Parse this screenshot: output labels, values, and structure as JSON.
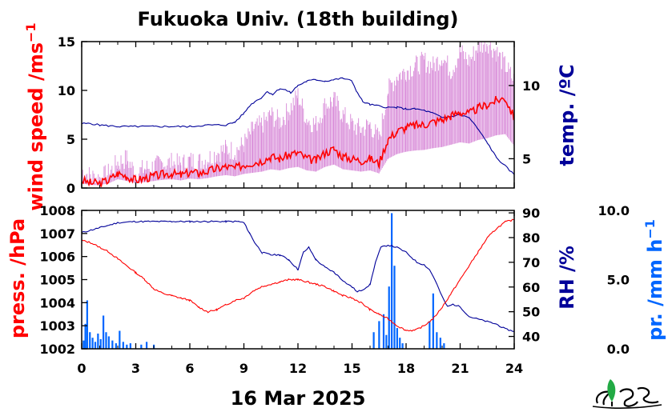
{
  "chart_data": [
    {
      "type": "line",
      "title": "Fukuoka Univ. (18th building)",
      "x_range": [
        0,
        24
      ],
      "x_ticks": [
        0,
        3,
        6,
        9,
        12,
        15,
        18,
        21,
        24
      ],
      "left_axis": {
        "label": "wind speed /ms",
        "superscript": "−1",
        "ylim": [
          0,
          15
        ],
        "ticks": [
          0,
          5,
          10,
          15
        ],
        "color": "#ff0000"
      },
      "right_axis": {
        "label": "temp. /ºC",
        "ylim": [
          3,
          13
        ],
        "ticks": [
          5,
          10
        ],
        "color": "#000099"
      },
      "series": [
        {
          "axis": "left",
          "style": "gust",
          "color": "#cc66cc",
          "x": [
            0,
            0.5,
            1,
            1.5,
            2,
            2.5,
            3,
            3.5,
            4,
            4.5,
            5,
            5.5,
            6,
            6.5,
            7,
            7.5,
            8,
            8.5,
            9,
            9.5,
            10,
            10.5,
            11,
            11.5,
            12,
            12.5,
            13,
            13.5,
            14,
            14.5,
            15,
            15.5,
            16,
            16.5,
            17,
            17.5,
            18,
            18.5,
            19,
            19.5,
            20,
            20.5,
            21,
            21.5,
            22,
            22.5,
            23,
            23.5,
            24
          ],
          "values": [
            1.8,
            1.2,
            1.0,
            1.5,
            2.6,
            3.0,
            1.5,
            2.0,
            2.2,
            2.5,
            2.6,
            2.4,
            2.8,
            2.7,
            3.0,
            3.6,
            4.0,
            3.8,
            4.5,
            6.0,
            6.5,
            7.5,
            6.8,
            8.0,
            9.5,
            7.0,
            6.5,
            8.5,
            9.0,
            7.5,
            6.5,
            6.0,
            6.5,
            5.0,
            10.0,
            11.5,
            12.0,
            12.5,
            13.0,
            12.5,
            13.5,
            12.0,
            14.0,
            13.0,
            14.5,
            15.0,
            14.0,
            12.5,
            11.0
          ]
        },
        {
          "axis": "left",
          "style": "mean",
          "color": "#ff0000",
          "x": [
            0,
            0.5,
            1,
            1.5,
            2,
            2.5,
            3,
            3.5,
            4,
            4.5,
            5,
            5.5,
            6,
            6.5,
            7,
            7.5,
            8,
            8.5,
            9,
            9.5,
            10,
            10.5,
            11,
            11.5,
            12,
            12.5,
            13,
            13.5,
            14,
            14.5,
            15,
            15.5,
            16,
            16.5,
            17,
            17.5,
            18,
            18.5,
            19,
            19.5,
            20,
            20.5,
            21,
            21.5,
            22,
            22.5,
            23,
            23.5,
            24
          ],
          "values": [
            0.8,
            0.5,
            0.5,
            0.8,
            1.5,
            1.2,
            0.8,
            1.0,
            1.2,
            1.4,
            1.5,
            1.3,
            1.6,
            1.5,
            1.7,
            2.0,
            2.2,
            2.0,
            2.4,
            2.6,
            2.8,
            3.2,
            3.0,
            3.4,
            3.6,
            3.0,
            2.8,
            3.6,
            4.0,
            3.2,
            3.0,
            2.8,
            3.0,
            2.5,
            5.0,
            5.8,
            6.2,
            6.4,
            6.5,
            6.8,
            7.0,
            7.4,
            7.8,
            7.6,
            8.2,
            8.5,
            9.0,
            9.2,
            7.2
          ]
        },
        {
          "axis": "right",
          "style": "temp",
          "color": "#000099",
          "x": [
            0,
            0.5,
            1,
            2,
            3,
            4,
            5,
            6,
            7,
            8,
            8.5,
            9,
            9.3,
            9.6,
            10,
            10.3,
            10.6,
            11,
            11.3,
            11.6,
            12,
            12.5,
            13,
            13.5,
            14,
            14.5,
            15,
            15.3,
            15.6,
            16,
            16.5,
            17,
            17.5,
            18,
            18.5,
            19,
            19.5,
            20,
            20.5,
            21,
            21.5,
            22,
            22.5,
            23,
            23.5,
            24
          ],
          "values": [
            7.4,
            7.4,
            7.3,
            7.2,
            7.2,
            7.2,
            7.2,
            7.2,
            7.3,
            7.3,
            7.5,
            8.1,
            8.6,
            8.9,
            9.2,
            9.6,
            9.4,
            9.8,
            9.7,
            9.5,
            10.0,
            10.3,
            10.4,
            10.3,
            10.4,
            10.5,
            10.3,
            9.5,
            8.9,
            8.7,
            8.6,
            8.5,
            8.5,
            8.4,
            8.4,
            8.3,
            8.1,
            7.8,
            7.9,
            8.0,
            7.8,
            7.0,
            6.1,
            5.1,
            4.5,
            3.9
          ]
        }
      ]
    },
    {
      "type": "line",
      "x_range": [
        0,
        24
      ],
      "x_ticks": [
        0,
        3,
        6,
        9,
        12,
        15,
        18,
        21,
        24
      ],
      "xlabel": "16 Mar 2025",
      "left_axis": {
        "label": "press. /hPa",
        "ylim": [
          1002,
          1008
        ],
        "ticks": [
          1002,
          1003,
          1004,
          1005,
          1006,
          1007,
          1008
        ],
        "color": "#ff0000"
      },
      "right_axis": {
        "label": "RH /%",
        "ylim": [
          35,
          91
        ],
        "ticks": [
          40,
          50,
          60,
          70,
          80,
          90
        ],
        "color": "#000099"
      },
      "precip_axis": {
        "label": "pr. /mm h",
        "superscript": "−1",
        "ylim": [
          0,
          10
        ],
        "ticks": [
          "0.0",
          "5.0",
          "10.0"
        ],
        "color": "#0066ff"
      },
      "series": [
        {
          "axis": "left",
          "style": "press",
          "color": "#ff0000",
          "x": [
            0,
            0.5,
            1,
            1.5,
            2,
            2.5,
            3,
            3.5,
            4,
            4.5,
            5,
            5.5,
            6,
            6.5,
            7,
            7.5,
            8,
            8.5,
            9,
            9.5,
            10,
            10.5,
            11,
            11.5,
            12,
            12.5,
            13,
            13.5,
            14,
            14.5,
            15,
            15.5,
            16,
            16.5,
            17,
            17.5,
            18,
            18.5,
            19,
            19.5,
            20,
            20.5,
            21,
            21.5,
            22,
            22.5,
            23,
            23.5,
            24
          ],
          "values": [
            1006.7,
            1006.6,
            1006.4,
            1006.2,
            1005.9,
            1005.6,
            1005.3,
            1005.0,
            1004.6,
            1004.4,
            1004.3,
            1004.2,
            1004.1,
            1003.8,
            1003.6,
            1003.7,
            1003.9,
            1004.1,
            1004.2,
            1004.5,
            1004.7,
            1004.8,
            1004.9,
            1005.0,
            1005.0,
            1004.9,
            1004.8,
            1004.7,
            1004.5,
            1004.3,
            1004.2,
            1004.0,
            1003.7,
            1003.5,
            1003.3,
            1003.0,
            1002.8,
            1002.8,
            1003.0,
            1003.3,
            1003.8,
            1004.4,
            1005.0,
            1005.6,
            1006.2,
            1006.8,
            1007.2,
            1007.5,
            1007.6
          ]
        },
        {
          "axis": "right",
          "style": "rh",
          "color": "#000099",
          "x": [
            0,
            0.5,
            1,
            1.5,
            2,
            3,
            4,
            5,
            6,
            7,
            8,
            8.7,
            9,
            9.3,
            9.6,
            10,
            10.5,
            11,
            11.5,
            12,
            12.3,
            12.6,
            13,
            13.5,
            14,
            14.3,
            14.6,
            15,
            15.3,
            15.6,
            16,
            16.3,
            16.6,
            17,
            17.5,
            18,
            18.3,
            18.6,
            19,
            19.3,
            19.6,
            20,
            20.3,
            20.6,
            21,
            21.5,
            22,
            22.5,
            23,
            23.5,
            24
          ],
          "values": [
            82,
            83,
            84,
            85,
            86,
            86.5,
            86.5,
            86.5,
            86.5,
            86.5,
            86.5,
            86.5,
            86,
            82,
            78,
            74,
            73,
            73,
            71,
            67,
            74,
            76,
            71,
            68,
            66,
            64,
            62,
            60,
            58,
            59,
            61,
            70,
            76,
            77,
            76,
            74,
            72,
            70,
            69,
            67,
            63,
            56,
            52,
            53,
            52,
            48,
            47,
            46,
            45,
            43,
            42
          ]
        },
        {
          "axis": "precip",
          "style": "bars",
          "color": "#0066ff",
          "x": [
            0.1,
            0.2,
            0.3,
            0.45,
            0.6,
            0.75,
            0.9,
            1.05,
            1.2,
            1.35,
            1.5,
            1.7,
            1.9,
            2.1,
            2.3,
            2.5,
            2.7,
            3.3,
            3.6,
            4.0,
            16.2,
            16.5,
            16.75,
            16.9,
            17.05,
            17.2,
            17.35,
            17.5,
            17.65,
            17.8,
            19.3,
            19.5,
            19.7,
            19.9,
            20.1
          ],
          "values": [
            0.6,
            1.8,
            3.5,
            1.2,
            0.8,
            0.5,
            1.1,
            0.7,
            2.4,
            1.2,
            0.9,
            0.6,
            0.4,
            1.3,
            0.5,
            0.3,
            0.4,
            0.3,
            0.5,
            0.3,
            1.2,
            2.0,
            2.5,
            1.0,
            4.5,
            9.8,
            6.0,
            1.5,
            0.8,
            0.4,
            2.0,
            4.0,
            1.2,
            0.8,
            0.4
          ]
        }
      ]
    }
  ]
}
